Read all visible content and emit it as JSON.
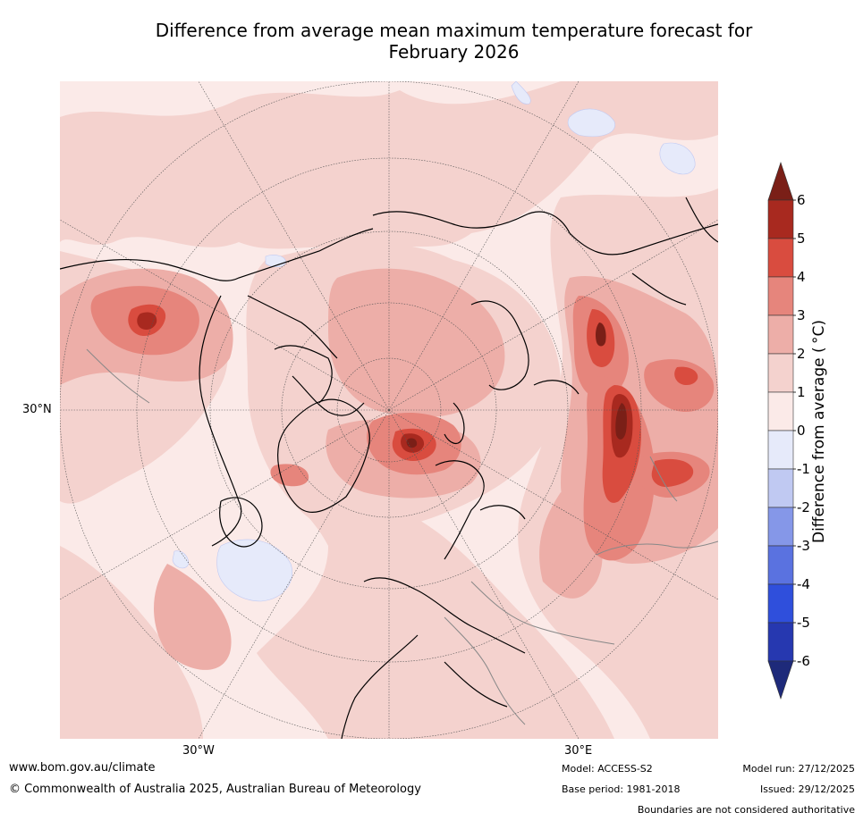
{
  "title_line1": "Difference from average mean maximum temperature forecast for",
  "title_line2": "February 2026",
  "map": {
    "projection": "north-polar-stereographic",
    "lat_label": "30°N",
    "lon_labels": [
      "30°W",
      "30°E"
    ],
    "background_category": "0 to 1"
  },
  "colorbar": {
    "label": "Difference from average ($^\\circ$C)",
    "label_display": "Difference from average ( °C)",
    "ticks": [
      "6",
      "5",
      "4",
      "3",
      "2",
      "1",
      "0",
      "-1",
      "-2",
      "-3",
      "-4",
      "-5",
      "-6"
    ],
    "levels": [
      {
        "range": "> 6",
        "color": "#7a1f17"
      },
      {
        "range": "5 to 6",
        "color": "#a8291f"
      },
      {
        "range": "4 to 5",
        "color": "#d94c3f"
      },
      {
        "range": "3 to 4",
        "color": "#e6857c"
      },
      {
        "range": "2 to 3",
        "color": "#edaea8"
      },
      {
        "range": "1 to 2",
        "color": "#f4d2ce"
      },
      {
        "range": "0 to 1",
        "color": "#fbeae8"
      },
      {
        "range": "-1 to 0",
        "color": "#e6eafa"
      },
      {
        "range": "-2 to -1",
        "color": "#c0c9f2"
      },
      {
        "range": "-3 to -2",
        "color": "#8597e8"
      },
      {
        "range": "-4 to -3",
        "color": "#5a72e0"
      },
      {
        "range": "-5 to -4",
        "color": "#2f4fdc"
      },
      {
        "range": "-6 to -5",
        "color": "#2638b0"
      },
      {
        "range": "< -6",
        "color": "#1e2a7a"
      }
    ]
  },
  "footer": {
    "website": "www.bom.gov.au/climate",
    "copyright": "© Commonwealth of Australia 2025, Australian Bureau of Meteorology",
    "model": "Model: ACCESS-S2",
    "base_period": "Base period: 1981-2018",
    "model_run": "Model run: 27/12/2025",
    "issued": "Issued: 29/12/2025",
    "disclaimer": "Boundaries are not considered authoritative"
  }
}
